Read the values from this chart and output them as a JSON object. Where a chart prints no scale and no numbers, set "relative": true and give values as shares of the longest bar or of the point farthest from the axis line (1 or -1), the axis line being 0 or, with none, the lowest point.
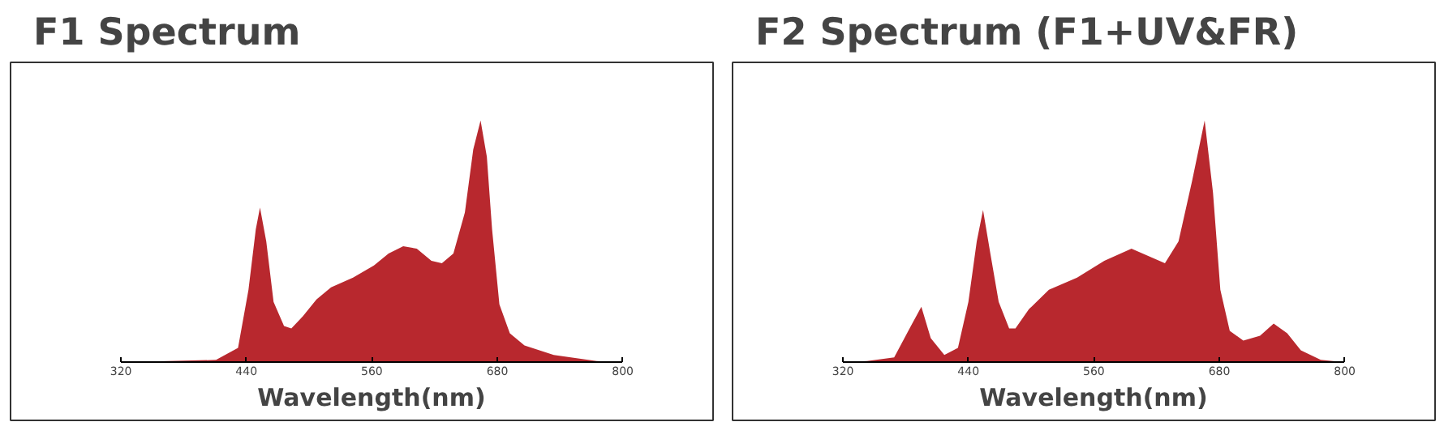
{
  "chart_data": [
    {
      "type": "area",
      "title": "F1 Spectrum",
      "xlabel": "Wavelength(nm)",
      "relative": true,
      "color": "#b8282e",
      "xlim": [
        320,
        800
      ],
      "xticks": [
        320,
        440,
        560,
        680,
        800
      ],
      "x": [
        320,
        411,
        432,
        442,
        449,
        453,
        459,
        466,
        476,
        483,
        494,
        507,
        521,
        542,
        562,
        576,
        590,
        603,
        617,
        627,
        638,
        649,
        657,
        664,
        670,
        675,
        682,
        692,
        706,
        734,
        775,
        800
      ],
      "values": [
        0,
        0.01,
        0.06,
        0.3,
        0.55,
        0.64,
        0.5,
        0.25,
        0.15,
        0.14,
        0.19,
        0.26,
        0.31,
        0.35,
        0.4,
        0.45,
        0.48,
        0.47,
        0.42,
        0.41,
        0.45,
        0.62,
        0.88,
        1,
        0.85,
        0.55,
        0.24,
        0.12,
        0.07,
        0.03,
        0.005,
        0
      ]
    },
    {
      "type": "area",
      "title": "F2 Spectrum (F1+UV&FR)",
      "xlabel": "Wavelength(nm)",
      "relative": true,
      "color": "#b8282e",
      "xlim": [
        320,
        800
      ],
      "xticks": [
        320,
        440,
        560,
        680,
        800
      ],
      "x": [
        320,
        343,
        369,
        385,
        395,
        404,
        417,
        430,
        440,
        448,
        454,
        461,
        469,
        479,
        485,
        498,
        517,
        544,
        570,
        596,
        612,
        628,
        641,
        654,
        666,
        674,
        681,
        690,
        703,
        719,
        732,
        745,
        758,
        777,
        800
      ],
      "values": [
        0,
        0.005,
        0.02,
        0.15,
        0.23,
        0.1,
        0.03,
        0.06,
        0.25,
        0.5,
        0.63,
        0.45,
        0.25,
        0.14,
        0.14,
        0.22,
        0.3,
        0.35,
        0.42,
        0.47,
        0.44,
        0.41,
        0.5,
        0.75,
        1,
        0.7,
        0.3,
        0.13,
        0.09,
        0.11,
        0.16,
        0.12,
        0.05,
        0.01,
        0
      ]
    }
  ]
}
